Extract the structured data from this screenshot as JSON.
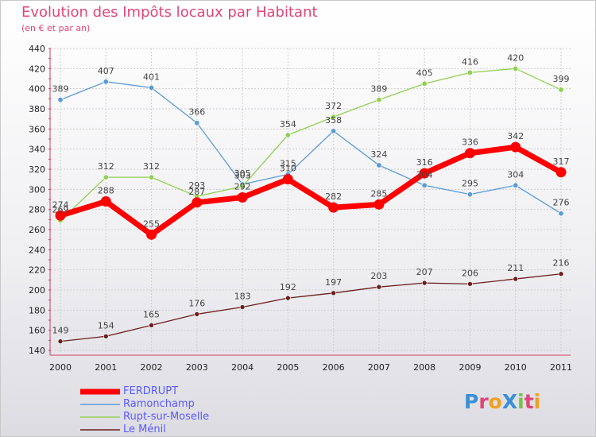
{
  "title": "Evolution des Impôts locaux par Habitant",
  "subtitle": "(en € et par an)",
  "logo": "ProXiti",
  "chart_data": {
    "type": "line",
    "x": [
      "2000",
      "2001",
      "2002",
      "2003",
      "2004",
      "2005",
      "2006",
      "2007",
      "2008",
      "2009",
      "2010",
      "2011"
    ],
    "ylim": [
      140,
      440
    ],
    "yticks": [
      140,
      160,
      180,
      200,
      220,
      240,
      260,
      280,
      300,
      320,
      340,
      360,
      380,
      400,
      420,
      440
    ],
    "grid": true,
    "legend_position": "bottom-left",
    "series": [
      {
        "name": "FERDRUPT",
        "color": "#ff0000",
        "values": [
          274,
          288,
          255,
          287,
          292,
          310,
          282,
          285,
          316,
          336,
          342,
          317
        ]
      },
      {
        "name": "Ramonchamp",
        "color": "#5b9bd5",
        "values": [
          389,
          407,
          401,
          366,
          305,
          315,
          358,
          324,
          304,
          295,
          304,
          276
        ]
      },
      {
        "name": "Rupt-sur-Moselle",
        "color": "#92d050",
        "values": [
          269,
          312,
          312,
          293,
          303,
          354,
          372,
          389,
          405,
          416,
          420,
          399
        ]
      },
      {
        "name": "Le Ménil",
        "color": "#6b1e1e",
        "values": [
          149,
          154,
          165,
          176,
          183,
          192,
          197,
          203,
          207,
          206,
          211,
          216
        ]
      }
    ]
  }
}
